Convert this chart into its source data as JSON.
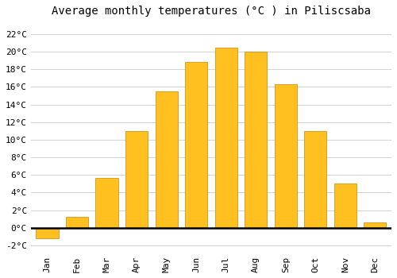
{
  "title": "Average monthly temperatures (°C ) in Piliscsaba",
  "months": [
    "Jan",
    "Feb",
    "Mar",
    "Apr",
    "May",
    "Jun",
    "Jul",
    "Aug",
    "Sep",
    "Oct",
    "Nov",
    "Dec"
  ],
  "values": [
    -1.2,
    1.2,
    5.7,
    11.0,
    15.5,
    18.8,
    20.5,
    20.0,
    16.3,
    11.0,
    5.0,
    0.6
  ],
  "bar_color": "#FFC020",
  "bar_edge_color": "#CC8800",
  "background_color": "#ffffff",
  "grid_color": "#cccccc",
  "ytick_labels": [
    "-2°C",
    "0°C",
    "2°C",
    "4°C",
    "6°C",
    "8°C",
    "10°C",
    "12°C",
    "14°C",
    "16°C",
    "18°C",
    "20°C",
    "22°C"
  ],
  "ytick_values": [
    -2,
    0,
    2,
    4,
    6,
    8,
    10,
    12,
    14,
    16,
    18,
    20,
    22
  ],
  "ylim": [
    -3.0,
    23.5
  ],
  "title_fontsize": 10,
  "tick_fontsize": 8,
  "font_family": "monospace",
  "bar_width": 0.75
}
